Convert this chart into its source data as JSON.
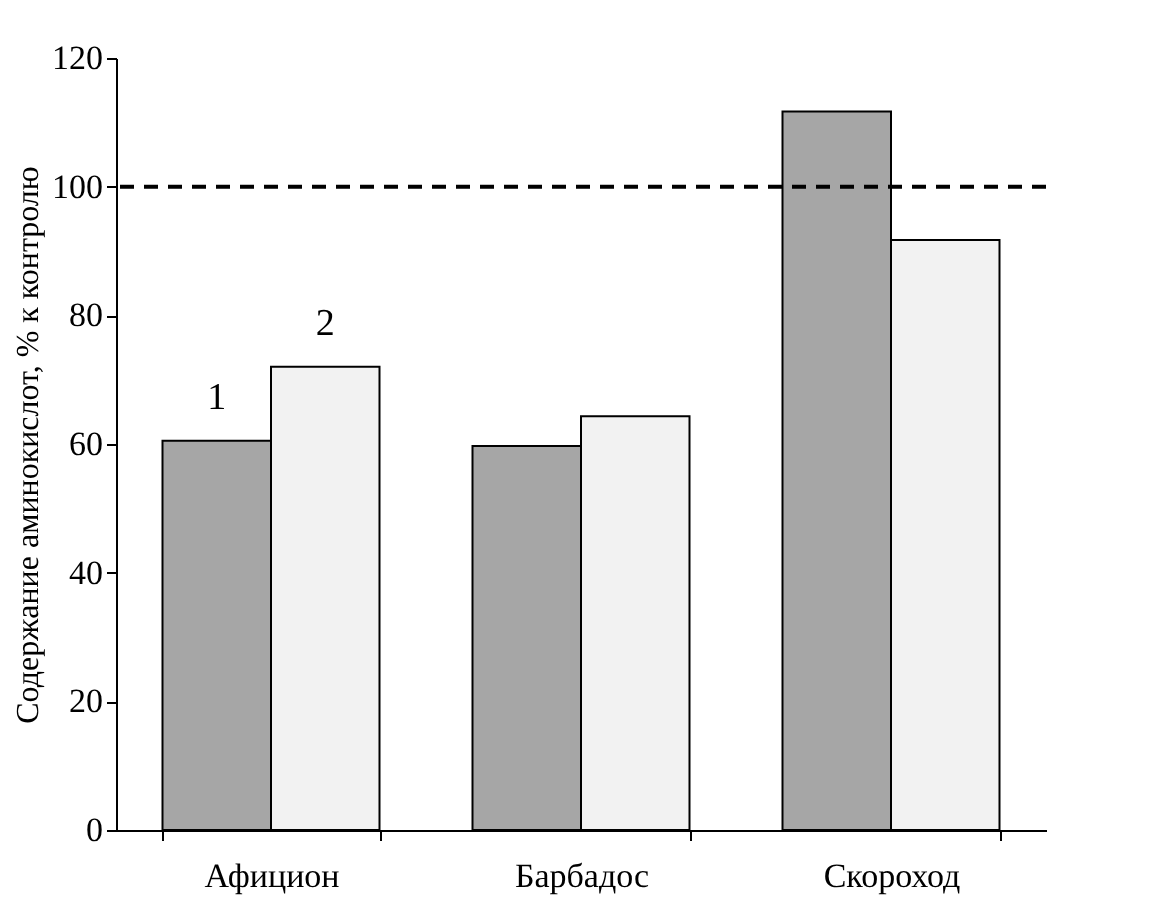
{
  "chart_data": {
    "type": "bar",
    "ylabel": "Содержание аминокислот, % к контролю",
    "categories": [
      "Афицион",
      "Барбадос",
      "Скороход"
    ],
    "series": [
      {
        "name": "1",
        "color": "#a6a6a6",
        "values": [
          60.5,
          59.7,
          111.7
        ]
      },
      {
        "name": "2",
        "color": "#f2f2f2",
        "values": [
          72,
          64.3,
          91.7
        ]
      }
    ],
    "ylim": [
      0,
      120
    ],
    "yticks": [
      0,
      20,
      40,
      60,
      80,
      100,
      120
    ],
    "grid": false,
    "legend": false,
    "ref_lines": [
      {
        "axis": "y",
        "value": 100,
        "line_style": "dashed",
        "color": "#000000"
      }
    ]
  }
}
